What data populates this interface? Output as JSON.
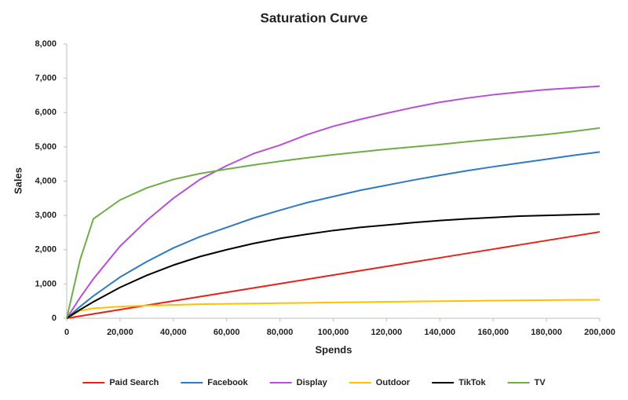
{
  "chart_data": {
    "type": "line",
    "title": "Saturation Curve",
    "x_label": "Spends",
    "y_label": "Sales",
    "x": [
      0,
      5000,
      10000,
      20000,
      30000,
      40000,
      50000,
      60000,
      70000,
      80000,
      90000,
      100000,
      110000,
      120000,
      130000,
      140000,
      150000,
      160000,
      170000,
      180000,
      190000,
      200000
    ],
    "series": [
      {
        "name": "Paid Search",
        "color": "#e8211b",
        "values": [
          0,
          63,
          126,
          252,
          378,
          504,
          630,
          756,
          882,
          1008,
          1134,
          1260,
          1386,
          1512,
          1638,
          1764,
          1890,
          2016,
          2142,
          2268,
          2394,
          2520
        ]
      },
      {
        "name": "Facebook",
        "color": "#2e7ac4",
        "values": [
          0,
          340,
          650,
          1200,
          1650,
          2050,
          2380,
          2650,
          2920,
          3150,
          3370,
          3550,
          3730,
          3880,
          4030,
          4170,
          4300,
          4420,
          4530,
          4640,
          4750,
          4850
        ]
      },
      {
        "name": "Display",
        "color": "#b84fd6",
        "values": [
          0,
          600,
          1150,
          2100,
          2850,
          3500,
          4050,
          4450,
          4800,
          5050,
          5350,
          5600,
          5800,
          5980,
          6150,
          6300,
          6420,
          6520,
          6600,
          6670,
          6720,
          6770
        ]
      },
      {
        "name": "Outdoor",
        "color": "#ffc000",
        "values": [
          0,
          220,
          290,
          340,
          370,
          390,
          410,
          420,
          430,
          440,
          450,
          460,
          470,
          480,
          490,
          500,
          505,
          515,
          520,
          530,
          535,
          540
        ]
      },
      {
        "name": "TikTok",
        "color": "#000000",
        "values": [
          0,
          250,
          480,
          900,
          1250,
          1550,
          1800,
          2000,
          2180,
          2330,
          2450,
          2560,
          2650,
          2720,
          2790,
          2850,
          2900,
          2940,
          2980,
          3000,
          3020,
          3040
        ]
      },
      {
        "name": "TV",
        "color": "#70ad47",
        "values": [
          0,
          1700,
          2900,
          3450,
          3800,
          4050,
          4220,
          4350,
          4470,
          4580,
          4680,
          4770,
          4850,
          4930,
          5000,
          5070,
          5150,
          5220,
          5290,
          5360,
          5450,
          5550
        ]
      }
    ],
    "xlim": [
      0,
      200000
    ],
    "xticks": [
      0,
      {
        "value": 20000,
        "label": "20,000"
      },
      {
        "value": 40000,
        "label": "40,000"
      },
      {
        "value": 60000,
        "label": "60,000"
      },
      {
        "value": 80000,
        "label": "80,000"
      },
      {
        "value": 100000,
        "label": "100,000"
      },
      {
        "value": 120000,
        "label": "120,000"
      },
      {
        "value": 140000,
        "label": "140,000"
      },
      {
        "value": 160000,
        "label": "160,000"
      },
      {
        "value": 180000,
        "label": "180,000"
      },
      {
        "value": 200000,
        "label": "200,000"
      }
    ],
    "ylim": [
      0,
      8000
    ],
    "yticks": [
      0,
      {
        "value": 1000,
        "label": "1,000"
      },
      {
        "value": 2000,
        "label": "2,000"
      },
      {
        "value": 3000,
        "label": "3,000"
      },
      {
        "value": 4000,
        "label": "4,000"
      },
      {
        "value": 5000,
        "label": "5,000"
      },
      {
        "value": 6000,
        "label": "6,000"
      },
      {
        "value": 7000,
        "label": "7,000"
      },
      {
        "value": 8000,
        "label": "8,000"
      }
    ],
    "grid": false,
    "legend": "bottom"
  }
}
